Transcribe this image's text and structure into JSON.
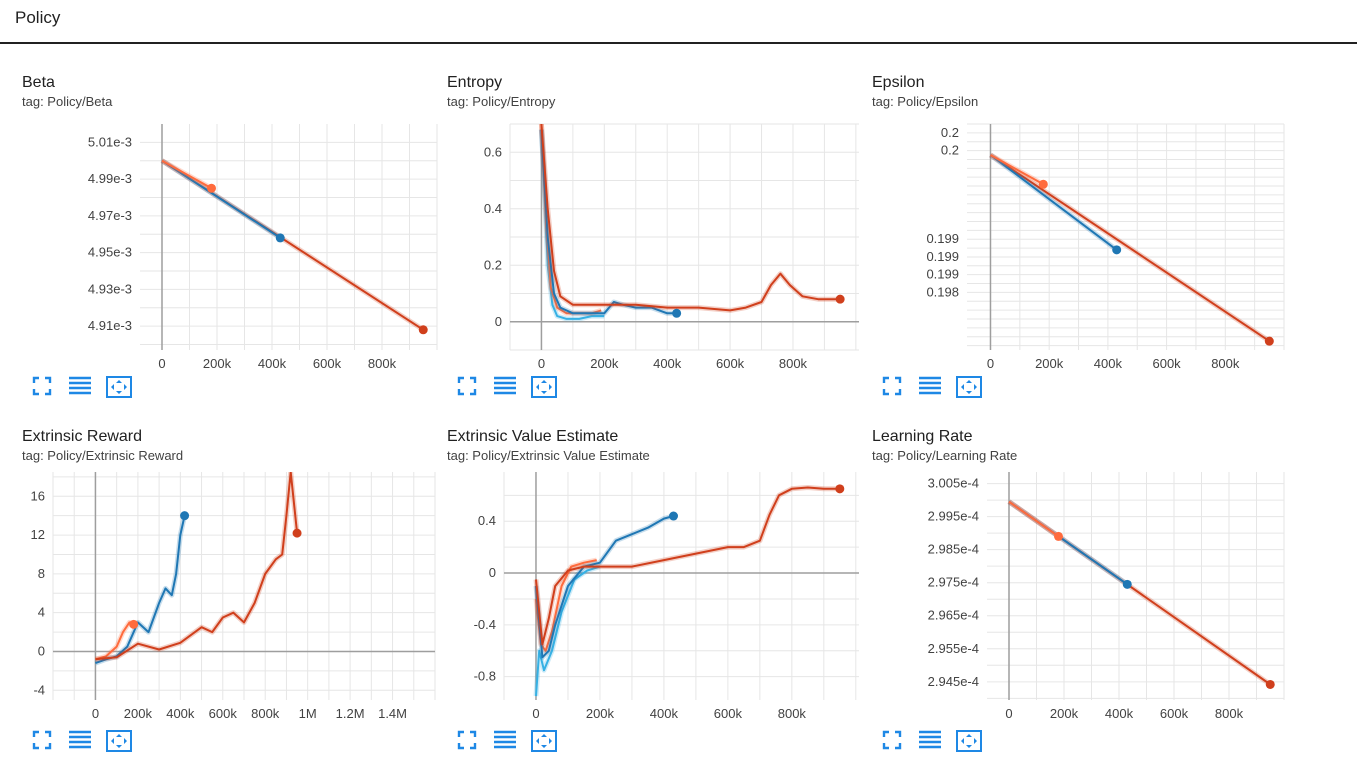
{
  "header": {
    "title": "Policy"
  },
  "colors": {
    "blue": "#1f77b4",
    "light_blue": "#36b1e4",
    "orange": "#ff6b3d",
    "red": "#d03f1c"
  },
  "toolbar_icons": [
    "fit-to-screen-icon",
    "toggle-log-icon",
    "fit-domain-icon"
  ],
  "chart_data": [
    {
      "type": "line",
      "title": "Beta",
      "tag": "tag: Policy/Beta",
      "xlim": [
        -80000,
        1000000
      ],
      "ylim": [
        0.004897,
        0.00502
      ],
      "xticks": [
        0,
        200000,
        400000,
        600000,
        800000
      ],
      "xtick_labels": [
        "0",
        "200k",
        "400k",
        "600k",
        "800k"
      ],
      "yticks": [
        0.00501,
        0.00499,
        0.00497,
        0.00495,
        0.00493,
        0.00491
      ],
      "ytick_labels": [
        "5.01e-3",
        "4.99e-3",
        "4.97e-3",
        "4.95e-3",
        "4.93e-3",
        "4.91e-3"
      ],
      "series": [
        {
          "color": "#d03f1c",
          "x": [
            0,
            950000
          ],
          "y": [
            0.005,
            0.004908
          ],
          "end": true
        },
        {
          "color": "#1f77b4",
          "x": [
            0,
            430000
          ],
          "y": [
            0.005,
            0.004958
          ],
          "end": true
        },
        {
          "color": "#ff6b3d",
          "x": [
            0,
            180000
          ],
          "y": [
            0.005,
            0.004985
          ],
          "end": true
        }
      ]
    },
    {
      "type": "line",
      "title": "Entropy",
      "tag": "tag: Policy/Entropy",
      "xlim": [
        -100000,
        1010000
      ],
      "ylim": [
        -0.1,
        0.7
      ],
      "xticks": [
        0,
        200000,
        400000,
        600000,
        800000
      ],
      "xtick_labels": [
        "0",
        "200k",
        "400k",
        "600k",
        "800k"
      ],
      "yticks": [
        0.6,
        0.4,
        0.2,
        0
      ],
      "ytick_labels": [
        "0.6",
        "0.4",
        "0.2",
        "0"
      ],
      "series": [
        {
          "color": "#36b1e4",
          "x": [
            0,
            10000,
            20000,
            35000,
            50000,
            80000,
            120000,
            160000,
            200000
          ],
          "y": [
            0.68,
            0.45,
            0.2,
            0.06,
            0.02,
            0.01,
            0.01,
            0.02,
            0.02
          ],
          "end": false
        },
        {
          "color": "#ff6b3d",
          "x": [
            0,
            15000,
            30000,
            50000,
            80000,
            120000,
            160000,
            190000
          ],
          "y": [
            0.7,
            0.35,
            0.12,
            0.05,
            0.03,
            0.03,
            0.03,
            0.04
          ],
          "end": false
        },
        {
          "color": "#1f77b4",
          "x": [
            0,
            20000,
            40000,
            60000,
            100000,
            150000,
            200000,
            230000,
            260000,
            300000,
            350000,
            400000,
            430000
          ],
          "y": [
            0.68,
            0.3,
            0.1,
            0.05,
            0.03,
            0.03,
            0.03,
            0.07,
            0.06,
            0.05,
            0.05,
            0.03,
            0.03
          ],
          "end": true
        },
        {
          "color": "#d03f1c",
          "x": [
            0,
            20000,
            40000,
            60000,
            100000,
            150000,
            200000,
            300000,
            400000,
            500000,
            600000,
            650000,
            700000,
            730000,
            760000,
            790000,
            830000,
            880000,
            950000
          ],
          "y": [
            0.7,
            0.4,
            0.18,
            0.09,
            0.06,
            0.06,
            0.06,
            0.06,
            0.05,
            0.05,
            0.04,
            0.05,
            0.07,
            0.13,
            0.17,
            0.13,
            0.09,
            0.08,
            0.08
          ],
          "end": true
        }
      ]
    },
    {
      "type": "line",
      "title": "Epsilon",
      "tag": "tag: Policy/Epsilon",
      "xlim": [
        -80000,
        1000000
      ],
      "ylim": [
        0.19775,
        0.2003
      ],
      "xticks": [
        0,
        200000,
        400000,
        600000,
        800000
      ],
      "xtick_labels": [
        "0",
        "200k",
        "400k",
        "600k",
        "800k"
      ],
      "yticks": [
        0.2002,
        0.2,
        0.199,
        0.1988,
        0.1986,
        0.1984
      ],
      "ytick_labels": [
        "0.2",
        "0.2",
        "0.199",
        "0.199",
        "0.199",
        "0.198"
      ],
      "series": [
        {
          "color": "#d03f1c",
          "x": [
            0,
            950000
          ],
          "y": [
            0.19995,
            0.19785
          ],
          "end": true
        },
        {
          "color": "#1f77b4",
          "x": [
            0,
            430000
          ],
          "y": [
            0.19995,
            0.19888
          ],
          "end": true
        },
        {
          "color": "#ff6b3d",
          "x": [
            0,
            180000
          ],
          "y": [
            0.19995,
            0.19962
          ],
          "end": true
        }
      ]
    },
    {
      "type": "line",
      "title": "Extrinsic Reward",
      "tag": "tag: Policy/Extrinsic Reward",
      "xlim": [
        -200000,
        1600000
      ],
      "ylim": [
        -5,
        18.5
      ],
      "xticks": [
        0,
        200000,
        400000,
        600000,
        800000,
        1000000,
        1200000,
        1400000
      ],
      "xtick_labels": [
        "0",
        "200k",
        "400k",
        "600k",
        "800k",
        "1M",
        "1.2M",
        "1.4M"
      ],
      "yticks": [
        16,
        12,
        8,
        4,
        0,
        -4
      ],
      "ytick_labels": [
        "16",
        "12",
        "8",
        "4",
        "0",
        "-4"
      ],
      "series": [
        {
          "color": "#ff6b3d",
          "x": [
            0,
            50000,
            100000,
            130000,
            160000,
            180000
          ],
          "y": [
            -0.8,
            -0.5,
            0.5,
            2.0,
            3.0,
            2.8
          ],
          "end": true
        },
        {
          "color": "#1f77b4",
          "x": [
            0,
            50000,
            100000,
            150000,
            200000,
            250000,
            300000,
            330000,
            360000,
            380000,
            400000,
            420000
          ],
          "y": [
            -1.2,
            -0.8,
            -0.5,
            0.5,
            3.0,
            2.0,
            5.0,
            6.5,
            5.8,
            8.0,
            12.0,
            14.0
          ],
          "end": true
        },
        {
          "color": "#d03f1c",
          "x": [
            0,
            100000,
            200000,
            300000,
            400000,
            500000,
            550000,
            600000,
            650000,
            700000,
            750000,
            800000,
            850000,
            880000,
            900000,
            920000,
            950000
          ],
          "y": [
            -0.8,
            -0.6,
            0.8,
            0.2,
            0.9,
            2.5,
            2.0,
            3.5,
            4.0,
            3.0,
            5.0,
            8.0,
            9.5,
            10.0,
            14.0,
            18.5,
            12.2
          ],
          "end": true
        }
      ]
    },
    {
      "type": "line",
      "title": "Extrinsic Value Estimate",
      "tag": "tag: Policy/Extrinsic Value Estimate",
      "xlim": [
        -100000,
        1010000
      ],
      "ylim": [
        -0.98,
        0.78
      ],
      "xticks": [
        0,
        200000,
        400000,
        600000,
        800000
      ],
      "xtick_labels": [
        "0",
        "200k",
        "400k",
        "600k",
        "800k"
      ],
      "yticks": [
        0.4,
        0,
        -0.4,
        -0.8
      ],
      "ytick_labels": [
        "0.4",
        "0",
        "-0.4",
        "-0.8"
      ],
      "series": [
        {
          "color": "#36b1e4",
          "x": [
            0,
            10000,
            25000,
            50000,
            80000,
            120000,
            160000,
            200000
          ],
          "y": [
            -0.95,
            -0.6,
            -0.75,
            -0.6,
            -0.3,
            -0.05,
            0.02,
            0.05
          ],
          "end": false
        },
        {
          "color": "#ff6b3d",
          "x": [
            0,
            15000,
            30000,
            50000,
            80000,
            110000,
            150000,
            190000
          ],
          "y": [
            -0.2,
            -0.55,
            -0.6,
            -0.45,
            -0.1,
            0.05,
            0.08,
            0.1
          ],
          "end": false
        },
        {
          "color": "#1f77b4",
          "x": [
            0,
            20000,
            40000,
            60000,
            100000,
            150000,
            200000,
            250000,
            300000,
            350000,
            400000,
            430000
          ],
          "y": [
            -0.1,
            -0.65,
            -0.6,
            -0.4,
            -0.1,
            0.05,
            0.08,
            0.25,
            0.3,
            0.35,
            0.42,
            0.44
          ],
          "end": true
        },
        {
          "color": "#d03f1c",
          "x": [
            0,
            20000,
            40000,
            60000,
            100000,
            150000,
            200000,
            300000,
            400000,
            500000,
            600000,
            650000,
            700000,
            730000,
            760000,
            800000,
            850000,
            900000,
            950000
          ],
          "y": [
            -0.05,
            -0.55,
            -0.35,
            -0.1,
            0.02,
            0.05,
            0.05,
            0.05,
            0.1,
            0.15,
            0.2,
            0.2,
            0.25,
            0.45,
            0.6,
            0.65,
            0.66,
            0.65,
            0.65
          ],
          "end": true
        }
      ]
    },
    {
      "type": "line",
      "title": "Learning Rate",
      "tag": "tag: Policy/Learning Rate",
      "xlim": [
        -80000,
        1000000
      ],
      "ylim": [
        0.00029395,
        0.00030085
      ],
      "xticks": [
        0,
        200000,
        400000,
        600000,
        800000
      ],
      "xtick_labels": [
        "0",
        "200k",
        "400k",
        "600k",
        "800k"
      ],
      "yticks": [
        0.0003005,
        0.0002995,
        0.0002985,
        0.0002975,
        0.0002965,
        0.0002955,
        0.0002945
      ],
      "ytick_labels": [
        "3.005e-4",
        "2.995e-4",
        "2.985e-4",
        "2.975e-4",
        "2.965e-4",
        "2.955e-4",
        "2.945e-4"
      ],
      "series": [
        {
          "color": "#d03f1c",
          "x": [
            0,
            950000
          ],
          "y": [
            0.00029995,
            0.00029442
          ],
          "end": true
        },
        {
          "color": "#1f77b4",
          "x": [
            0,
            430000
          ],
          "y": [
            0.00029995,
            0.00029745
          ],
          "end": true
        },
        {
          "color": "#ff6b3d",
          "x": [
            0,
            180000
          ],
          "y": [
            0.00029995,
            0.0002989
          ],
          "end": true
        }
      ]
    }
  ]
}
